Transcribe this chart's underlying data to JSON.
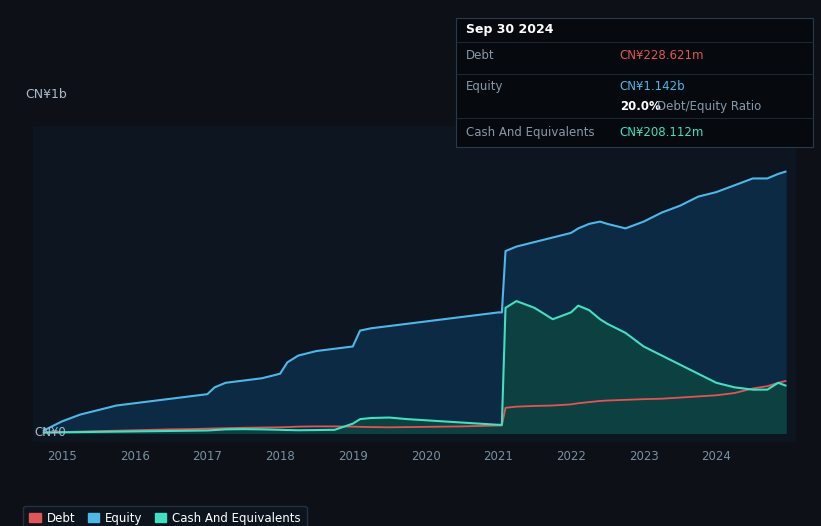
{
  "bg_color": "#0d1117",
  "plot_bg_color": "#0c1520",
  "grid_color": "#1a2a3a",
  "ylabel_text": "CN¥1b",
  "ylabel_zero": "CN¥0",
  "x_ticks": [
    2015,
    2016,
    2017,
    2018,
    2019,
    2020,
    2021,
    2022,
    2023,
    2024
  ],
  "x_min": 2014.6,
  "x_max": 2025.1,
  "y_min": -0.04,
  "y_max": 1.35,
  "tooltip_title": "Sep 30 2024",
  "tooltip_debt_label": "Debt",
  "tooltip_debt_value": "CN¥228.621m",
  "tooltip_equity_label": "Equity",
  "tooltip_equity_value": "CN¥1.142b",
  "tooltip_ratio": "20.0% Debt/Equity Ratio",
  "tooltip_cash_label": "Cash And Equivalents",
  "tooltip_cash_value": "CN¥208.112m",
  "debt_color": "#e05555",
  "equity_color": "#4db8e8",
  "cash_color": "#40e0c0",
  "equity_fill_color": "#0d2a45",
  "cash_fill_color": "#0d4040",
  "legend_bg": "#0d1520",
  "legend_edge": "#2a3a4a",
  "years": [
    2014.75,
    2015.0,
    2015.25,
    2015.5,
    2015.75,
    2016.0,
    2016.25,
    2016.5,
    2016.75,
    2017.0,
    2017.1,
    2017.25,
    2017.5,
    2017.75,
    2018.0,
    2018.1,
    2018.25,
    2018.5,
    2018.75,
    2019.0,
    2019.1,
    2019.25,
    2019.5,
    2019.75,
    2020.0,
    2020.25,
    2020.5,
    2020.75,
    2021.0,
    2021.05,
    2021.1,
    2021.25,
    2021.5,
    2021.75,
    2022.0,
    2022.1,
    2022.25,
    2022.4,
    2022.5,
    2022.75,
    2023.0,
    2023.25,
    2023.5,
    2023.75,
    2024.0,
    2024.25,
    2024.5,
    2024.7,
    2024.85,
    2024.95
  ],
  "equity": [
    0.01,
    0.05,
    0.08,
    0.1,
    0.12,
    0.13,
    0.14,
    0.15,
    0.16,
    0.17,
    0.2,
    0.22,
    0.23,
    0.24,
    0.26,
    0.31,
    0.34,
    0.36,
    0.37,
    0.38,
    0.45,
    0.46,
    0.47,
    0.48,
    0.49,
    0.5,
    0.51,
    0.52,
    0.53,
    0.53,
    0.8,
    0.82,
    0.84,
    0.86,
    0.88,
    0.9,
    0.92,
    0.93,
    0.92,
    0.9,
    0.93,
    0.97,
    1.0,
    1.04,
    1.06,
    1.09,
    1.12,
    1.12,
    1.14,
    1.15
  ],
  "debt": [
    0.001,
    0.003,
    0.005,
    0.007,
    0.009,
    0.011,
    0.013,
    0.015,
    0.016,
    0.018,
    0.019,
    0.02,
    0.022,
    0.023,
    0.024,
    0.025,
    0.027,
    0.028,
    0.028,
    0.027,
    0.026,
    0.025,
    0.024,
    0.025,
    0.026,
    0.027,
    0.028,
    0.03,
    0.032,
    0.032,
    0.11,
    0.115,
    0.118,
    0.12,
    0.125,
    0.13,
    0.135,
    0.14,
    0.142,
    0.145,
    0.148,
    0.15,
    0.155,
    0.16,
    0.165,
    0.175,
    0.195,
    0.205,
    0.22,
    0.228
  ],
  "cash": [
    0.001,
    0.002,
    0.003,
    0.004,
    0.005,
    0.006,
    0.007,
    0.008,
    0.009,
    0.01,
    0.012,
    0.015,
    0.016,
    0.015,
    0.013,
    0.012,
    0.011,
    0.012,
    0.013,
    0.04,
    0.06,
    0.065,
    0.067,
    0.06,
    0.055,
    0.05,
    0.045,
    0.04,
    0.035,
    0.035,
    0.55,
    0.58,
    0.55,
    0.5,
    0.53,
    0.56,
    0.54,
    0.5,
    0.48,
    0.44,
    0.38,
    0.34,
    0.3,
    0.26,
    0.22,
    0.2,
    0.19,
    0.19,
    0.22,
    0.208
  ]
}
